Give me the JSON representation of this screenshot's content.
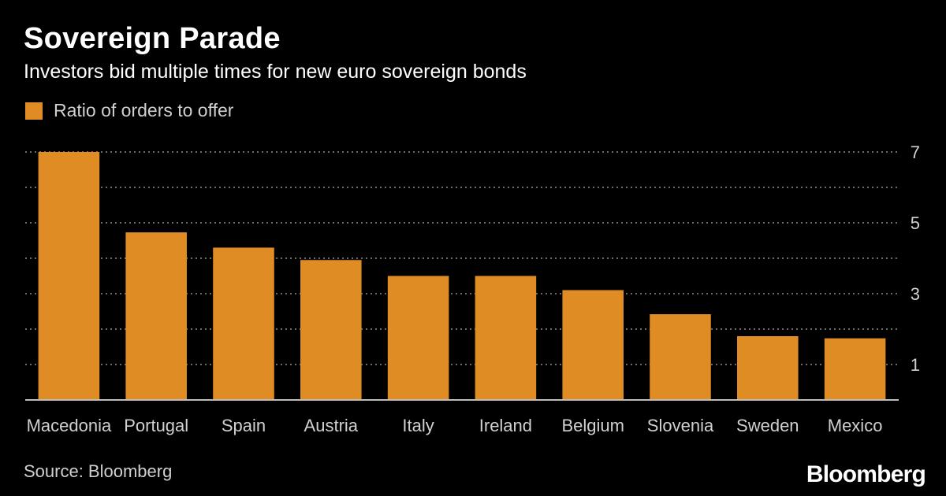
{
  "header": {
    "title": "Sovereign Parade",
    "subtitle": "Investors bid multiple times for new euro sovereign bonds"
  },
  "legend": {
    "label": "Ratio of orders to offer",
    "color": "#e08c24"
  },
  "colors": {
    "bar": "#e08c24",
    "background": "#000000",
    "grid": "#6b6b6b",
    "text": "#ffffff",
    "muted_text": "#d0d0d0"
  },
  "chart_data": {
    "type": "bar",
    "title": "Sovereign Parade",
    "subtitle": "Investors bid multiple times for new euro sovereign bonds",
    "xlabel": "",
    "ylabel": "",
    "categories": [
      "Macedonia",
      "Portugal",
      "Spain",
      "Austria",
      "Italy",
      "Ireland",
      "Belgium",
      "Slovenia",
      "Sweden",
      "Mexico"
    ],
    "series": [
      {
        "name": "Ratio of orders to offer",
        "values": [
          7.0,
          4.73,
          4.3,
          3.95,
          3.5,
          3.5,
          3.1,
          2.42,
          1.8,
          1.74
        ]
      }
    ],
    "ylim": [
      0,
      7
    ],
    "yticks": [
      1,
      3,
      5,
      7
    ],
    "gridlines": [
      1,
      2,
      3,
      4,
      5,
      6,
      7
    ],
    "grid": true,
    "legend_position": "top-left",
    "y_axis_side": "right"
  },
  "footer": {
    "source": "Source: Bloomberg",
    "brand": "Bloomberg"
  }
}
